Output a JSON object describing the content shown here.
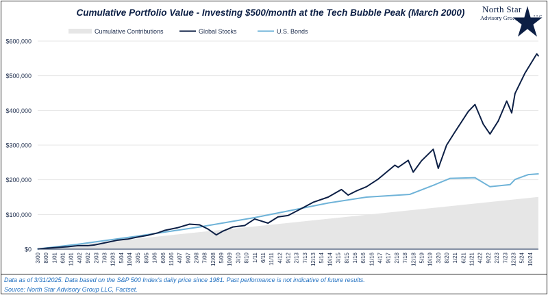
{
  "title": "Cumulative Portfolio Value - Investing $500/month at the Tech Bubble Peak (March 2000)",
  "logo": {
    "line1": "North Star",
    "line2": "Advisory Group",
    "line3": "LLC"
  },
  "footer": {
    "note": "Data as of 3/31/2025. Data based on the S&P 500 Index's daily price since 1981. Past performance is not indicative of future results.",
    "source": "Source: North Star Advisory Group LLC, Factset."
  },
  "chart_data": {
    "type": "line",
    "title": "Cumulative Portfolio Value - Investing $500/month at the Tech Bubble Peak (March 2000)",
    "xlabel": "",
    "ylabel": "",
    "x_range": [
      "2000-03",
      "2025-03"
    ],
    "ylim": [
      0,
      600000
    ],
    "y_ticks": [
      0,
      100000,
      200000,
      300000,
      400000,
      500000,
      600000
    ],
    "y_tick_labels": [
      "$0",
      "$100,000",
      "$200,000",
      "$300,000",
      "$400,000",
      "$500,000",
      "$600,000"
    ],
    "x_tick_labels": [
      "3/00",
      "8/00",
      "1/01",
      "6/01",
      "11/01",
      "4/02",
      "9/02",
      "2/03",
      "7/03",
      "12/03",
      "5/04",
      "10/04",
      "3/05",
      "8/05",
      "1/06",
      "6/06",
      "11/06",
      "4/07",
      "9/07",
      "2/08",
      "7/08",
      "12/08",
      "5/09",
      "10/09",
      "3/10",
      "8/10",
      "1/11",
      "6/11",
      "11/11",
      "4/12",
      "9/12",
      "2/13",
      "7/13",
      "12/13",
      "5/14",
      "10/14",
      "3/15",
      "8/15",
      "1/16",
      "6/16",
      "11/16",
      "4/17",
      "9/17",
      "2/18",
      "7/18",
      "12/18",
      "5/19",
      "10/19",
      "3/20",
      "8/20",
      "1/21",
      "6/21",
      "11/21",
      "4/22",
      "9/22",
      "2/23",
      "7/23",
      "12/23",
      "5/24",
      "10/24"
    ],
    "grid": "horizontal",
    "legend": "top",
    "series": [
      {
        "name": "Cumulative Contributions",
        "style": "area",
        "color": "#e6e6e6",
        "points": [
          [
            "2000-03",
            500
          ],
          [
            "2025-03",
            150500
          ]
        ]
      },
      {
        "name": "Global Stocks",
        "style": "line",
        "color": "#0c1f45",
        "points": [
          [
            "2000-03",
            500
          ],
          [
            "2000-09",
            3000
          ],
          [
            "2001-03",
            5000
          ],
          [
            "2001-09",
            7000
          ],
          [
            "2002-03",
            10000
          ],
          [
            "2002-09",
            10000
          ],
          [
            "2003-01",
            12000
          ],
          [
            "2003-09",
            20000
          ],
          [
            "2004-03",
            26000
          ],
          [
            "2004-09",
            29000
          ],
          [
            "2005-02",
            34000
          ],
          [
            "2005-09",
            40000
          ],
          [
            "2006-03",
            47000
          ],
          [
            "2006-07",
            54000
          ],
          [
            "2007-03",
            62000
          ],
          [
            "2007-10",
            72000
          ],
          [
            "2008-04",
            70000
          ],
          [
            "2008-09",
            58000
          ],
          [
            "2009-02",
            41000
          ],
          [
            "2009-06",
            52000
          ],
          [
            "2009-12",
            64000
          ],
          [
            "2010-07",
            68000
          ],
          [
            "2011-01",
            87000
          ],
          [
            "2011-09",
            75000
          ],
          [
            "2012-03",
            93000
          ],
          [
            "2012-09",
            97000
          ],
          [
            "2013-05",
            117000
          ],
          [
            "2013-12",
            135000
          ],
          [
            "2014-09",
            150000
          ],
          [
            "2015-05",
            172000
          ],
          [
            "2015-09",
            156000
          ],
          [
            "2016-02",
            168000
          ],
          [
            "2016-08",
            180000
          ],
          [
            "2017-03",
            202000
          ],
          [
            "2018-01",
            242000
          ],
          [
            "2018-03",
            236000
          ],
          [
            "2018-09",
            256000
          ],
          [
            "2018-12",
            222000
          ],
          [
            "2019-05",
            255000
          ],
          [
            "2019-12",
            288000
          ],
          [
            "2020-03",
            233000
          ],
          [
            "2020-08",
            300000
          ],
          [
            "2021-01",
            338000
          ],
          [
            "2021-09",
            397000
          ],
          [
            "2022-01",
            417000
          ],
          [
            "2022-06",
            360000
          ],
          [
            "2022-10",
            332000
          ],
          [
            "2023-03",
            370000
          ],
          [
            "2023-08",
            427000
          ],
          [
            "2023-11",
            393000
          ],
          [
            "2024-01",
            449000
          ],
          [
            "2024-07",
            508000
          ],
          [
            "2025-02",
            563000
          ],
          [
            "2025-03",
            557000
          ]
        ]
      },
      {
        "name": "U.S. Bonds",
        "style": "line",
        "color": "#6fb3d8",
        "points": [
          [
            "2000-03",
            500
          ],
          [
            "2002-03",
            14000
          ],
          [
            "2005-02",
            37000
          ],
          [
            "2008-04",
            64000
          ],
          [
            "2011-01",
            91000
          ],
          [
            "2012-09",
            110000
          ],
          [
            "2014-09",
            133000
          ],
          [
            "2016-08",
            150000
          ],
          [
            "2018-10",
            158000
          ],
          [
            "2020-01",
            186000
          ],
          [
            "2020-10",
            204000
          ],
          [
            "2022-01",
            206000
          ],
          [
            "2022-10",
            180000
          ],
          [
            "2023-10",
            186000
          ],
          [
            "2024-01",
            201000
          ],
          [
            "2024-09",
            215000
          ],
          [
            "2025-03",
            217000
          ]
        ]
      }
    ]
  }
}
